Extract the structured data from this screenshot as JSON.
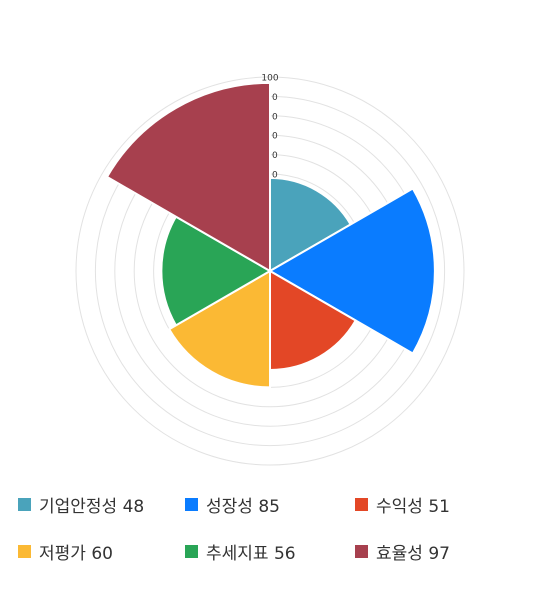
{
  "chart_data": {
    "type": "polar-area",
    "categories": [
      "기업안정성",
      "성장성",
      "수익성",
      "저평가",
      "추세지표",
      "효율성"
    ],
    "values": [
      48,
      85,
      51,
      60,
      56,
      97
    ],
    "colors": [
      "#4aa3bb",
      "#0a7cff",
      "#e34726",
      "#fbb934",
      "#29a556",
      "#a7404e"
    ],
    "legend_labels": [
      "기업안정성 48",
      "성장성 85",
      "수익성 51",
      "저평가 60",
      "추세지표 56",
      "효율성 97"
    ],
    "rlim": [
      0,
      100
    ],
    "tick_labels": [
      "0",
      "0",
      "0",
      "0",
      "0",
      "100"
    ],
    "legend_position": "bottom",
    "grid": true
  }
}
